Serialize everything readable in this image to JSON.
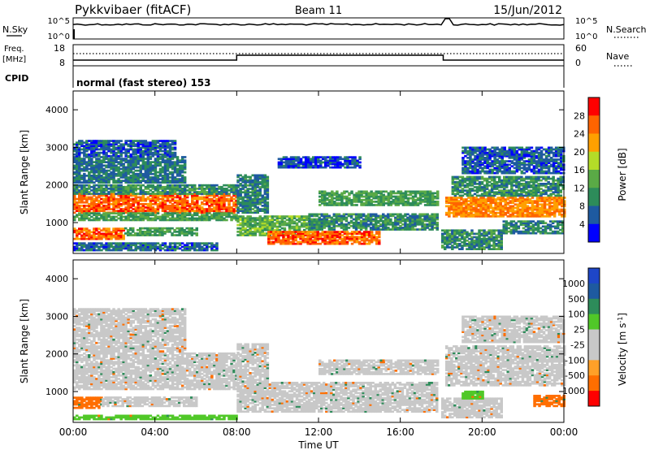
{
  "header": {
    "title": "Pykkvibaer (fitACF)",
    "beam": "Beam 11",
    "date": "15/Jun/2012"
  },
  "nsky_panel": {
    "left_label": "N.Sky",
    "right_label": "N.Search",
    "left_ticks": [
      "10^5",
      "10^0"
    ],
    "right_ticks": [
      "10^5",
      "10^0"
    ]
  },
  "freq_panel": {
    "left_label_1": "Freq.",
    "left_label_2": "[MHz]",
    "right_label": "Nave",
    "left_ticks": [
      "18",
      "8"
    ],
    "right_ticks": [
      "60",
      "0"
    ]
  },
  "cpid_panel": {
    "label": "CPID",
    "text": "normal (fast stereo) 153"
  },
  "colors": {
    "power": [
      "#0000ff",
      "#1e5aa0",
      "#2d8c5a",
      "#5aaa46",
      "#b4dc28",
      "#ffa000",
      "#ff6400",
      "#ff0000"
    ],
    "velocity": [
      "#ff0000",
      "#ff6e00",
      "#ffa028",
      "#c8c8c8",
      "#c8c8c8",
      "#50c828",
      "#2d8c5a",
      "#1e5aa0",
      "#1e46c8"
    ]
  },
  "chart_data": [
    {
      "type": "heatmap",
      "name": "power",
      "xlabel": "Time UT",
      "ylabel": "Slant Range [km]",
      "xlim": [
        0,
        24
      ],
      "ylim": [
        180,
        4500
      ],
      "x_tick_values": [
        0,
        4,
        8,
        12,
        16,
        20,
        24
      ],
      "x_tick_labels": [
        "00:00",
        "04:00",
        "08:00",
        "12:00",
        "16:00",
        "20:00",
        "00:00"
      ],
      "y_tick_values": [
        1000,
        2000,
        3000,
        4000
      ],
      "y_tick_labels": [
        "1000",
        "2000",
        "3000",
        "4000"
      ],
      "colorbar": {
        "label": "Power [dB]",
        "ticks": [
          "4",
          "8",
          "12",
          "16",
          "20",
          "24",
          "28"
        ],
        "range": [
          0,
          32
        ]
      },
      "bands": [
        {
          "t0": 0.0,
          "t1": 8.0,
          "r0": 1250,
          "r1": 1750,
          "level": 26
        },
        {
          "t0": 0.0,
          "t1": 8.0,
          "r0": 1050,
          "r1": 1250,
          "level": 12
        },
        {
          "t0": 0.0,
          "t1": 8.0,
          "r0": 1750,
          "r1": 2000,
          "level": 10
        },
        {
          "t0": 0.0,
          "t1": 5.5,
          "r0": 2050,
          "r1": 2750,
          "level": 8
        },
        {
          "t0": 0.0,
          "t1": 5.0,
          "r0": 2750,
          "r1": 3200,
          "level": 6
        },
        {
          "t0": 0.0,
          "t1": 2.5,
          "r0": 550,
          "r1": 850,
          "level": 26
        },
        {
          "t0": 2.5,
          "t1": 6.0,
          "r0": 650,
          "r1": 850,
          "level": 12
        },
        {
          "t0": 0.0,
          "t1": 7.0,
          "r0": 250,
          "r1": 450,
          "level": 7
        },
        {
          "t0": 8.0,
          "t1": 11.5,
          "r0": 650,
          "r1": 1150,
          "level": 14
        },
        {
          "t0": 8.0,
          "t1": 9.5,
          "r0": 1250,
          "r1": 2250,
          "level": 9
        },
        {
          "t0": 9.5,
          "t1": 15.0,
          "r0": 420,
          "r1": 750,
          "level": 26
        },
        {
          "t0": 11.5,
          "t1": 17.8,
          "r0": 800,
          "r1": 1250,
          "level": 10
        },
        {
          "t0": 12.0,
          "t1": 17.8,
          "r0": 1450,
          "r1": 1850,
          "level": 12
        },
        {
          "t0": 10.0,
          "t1": 14.0,
          "r0": 2450,
          "r1": 2750,
          "level": 5
        },
        {
          "t0": 18.2,
          "t1": 24.0,
          "r0": 1150,
          "r1": 1650,
          "level": 24
        },
        {
          "t0": 18.5,
          "t1": 24.0,
          "r0": 1700,
          "r1": 2200,
          "level": 10
        },
        {
          "t0": 19.0,
          "t1": 24.0,
          "r0": 2300,
          "r1": 3000,
          "level": 6
        },
        {
          "t0": 18.0,
          "t1": 21.0,
          "r0": 280,
          "r1": 800,
          "level": 10
        },
        {
          "t0": 21.0,
          "t1": 24.0,
          "r0": 700,
          "r1": 1050,
          "level": 9
        }
      ]
    },
    {
      "type": "heatmap",
      "name": "velocity",
      "xlabel": "Time UT",
      "ylabel": "Slant Range [km]",
      "xlim": [
        0,
        24
      ],
      "ylim": [
        180,
        4500
      ],
      "x_tick_values": [
        0,
        4,
        8,
        12,
        16,
        20,
        24
      ],
      "x_tick_labels": [
        "00:00",
        "04:00",
        "08:00",
        "12:00",
        "16:00",
        "20:00",
        "00:00"
      ],
      "y_tick_values": [
        1000,
        2000,
        3000,
        4000
      ],
      "y_tick_labels": [
        "1000",
        "2000",
        "3000",
        "4000"
      ],
      "colorbar": {
        "label": "Velocity [m s^-1]",
        "ticks": [
          "1000",
          "500",
          "100",
          "25",
          "-25",
          "-100",
          "-500",
          "-1000"
        ]
      },
      "bands": [
        {
          "t0": 0.0,
          "t1": 8.0,
          "r0": 1050,
          "r1": 2000,
          "v": 0
        },
        {
          "t0": 0.0,
          "t1": 5.5,
          "r0": 2050,
          "r1": 3200,
          "v": 0
        },
        {
          "t0": 0.0,
          "t1": 1.4,
          "r0": 550,
          "r1": 850,
          "v": -150
        },
        {
          "t0": 1.4,
          "t1": 6.0,
          "r0": 600,
          "r1": 850,
          "v": 0
        },
        {
          "t0": 0.0,
          "t1": 8.0,
          "r0": 250,
          "r1": 380,
          "v": 60
        },
        {
          "t0": 8.0,
          "t1": 17.8,
          "r0": 450,
          "r1": 1250,
          "v": 0
        },
        {
          "t0": 8.0,
          "t1": 9.5,
          "r0": 1250,
          "r1": 2250,
          "v": 0
        },
        {
          "t0": 12.0,
          "t1": 17.8,
          "r0": 1450,
          "r1": 1850,
          "v": 0
        },
        {
          "t0": 18.2,
          "t1": 24.0,
          "r0": 1150,
          "r1": 2200,
          "v": 0
        },
        {
          "t0": 19.0,
          "t1": 24.0,
          "r0": 2300,
          "r1": 3000,
          "v": 0
        },
        {
          "t0": 18.0,
          "t1": 21.0,
          "r0": 300,
          "r1": 800,
          "v": 0
        },
        {
          "t0": 19.0,
          "t1": 20.0,
          "r0": 800,
          "r1": 1000,
          "v": 60
        },
        {
          "t0": 22.5,
          "t1": 24.0,
          "r0": 600,
          "r1": 900,
          "v": -150
        }
      ]
    }
  ]
}
